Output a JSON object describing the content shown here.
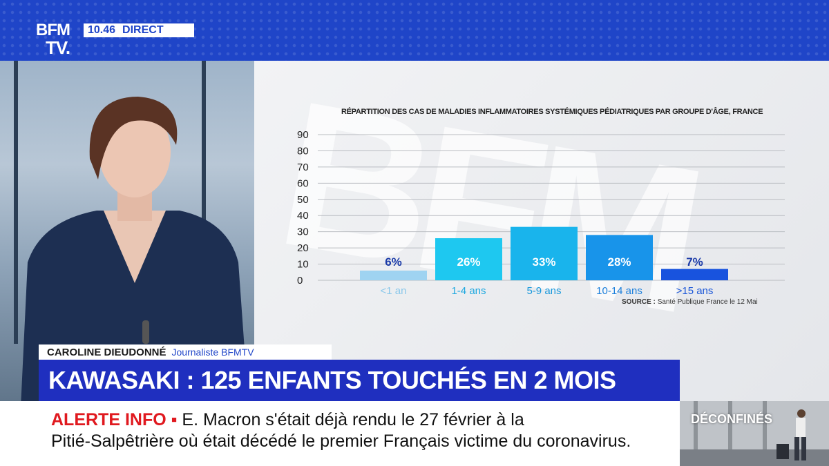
{
  "channel": {
    "logo_top": "BFM",
    "logo_bottom": "TV.",
    "time": "10.46",
    "status": "DIRECT"
  },
  "chart_data": {
    "type": "bar",
    "title": "RÉPARTITION DES CAS DE MALADIES INFLAMMATOIRES SYSTÉMIQUES PÉDIATRIQUES PAR GROUPE D'ÂGE, FRANCE",
    "categories": [
      "<1 an",
      "1-4 ans",
      "5-9 ans",
      "10-14 ans",
      ">15 ans"
    ],
    "values": [
      6,
      26,
      33,
      28,
      7
    ],
    "value_labels": [
      "6%",
      "26%",
      "33%",
      "28%",
      "7%"
    ],
    "ylim": [
      0,
      90
    ],
    "yticks": [
      0,
      10,
      20,
      30,
      40,
      50,
      60,
      70,
      80,
      90
    ],
    "grid": true,
    "colors": [
      "#9fd3f1",
      "#1ec8f0",
      "#19b4ec",
      "#1894ea",
      "#1853de"
    ],
    "label_colors": [
      "#1a3aa8",
      "#ffffff",
      "#ffffff",
      "#ffffff",
      "#1a3aa8"
    ],
    "tick_label_colors": [
      "#8ac8ea",
      "#1ea8e0",
      "#1898dc",
      "#1a7edb",
      "#1a56d8"
    ]
  },
  "source": {
    "label": "SOURCE :",
    "text": "Santé Publique France le 12 Mai"
  },
  "name_strap": {
    "name": "CAROLINE DIEUDONNÉ",
    "role": "Journaliste BFMTV"
  },
  "headline": "KAWASAKI : 125 ENFANTS TOUCHÉS EN 2 MOIS",
  "ticker": {
    "label": "ALERTE INFO ▪",
    "line1": " E. Macron s'était déjà rendu le 27 février à la",
    "line2": "Pitié-Salpêtrière où était décédé le premier Français victime du coronavirus."
  },
  "thumbnail": {
    "label": "DÉCONFINÉS"
  }
}
